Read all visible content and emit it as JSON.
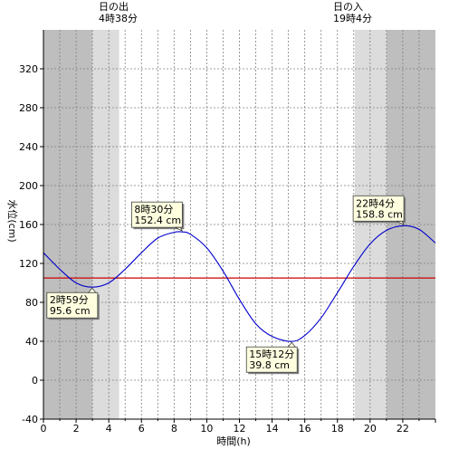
{
  "sun": {
    "sunrise_label": "日の出",
    "sunrise_time": "4時38分",
    "sunset_label": "日の入",
    "sunset_time": "19時4分"
  },
  "chart_data": {
    "type": "line",
    "title": "",
    "xlabel": "時間(h)",
    "ylabel": "水位(cm)",
    "xlim": [
      0,
      24
    ],
    "ylim": [
      -40,
      360
    ],
    "xticks": [
      0,
      2,
      4,
      6,
      8,
      10,
      12,
      14,
      16,
      18,
      20,
      22
    ],
    "yticks": [
      -40,
      0,
      40,
      80,
      120,
      160,
      200,
      240,
      280,
      320
    ],
    "reference_level": 105,
    "series": [
      {
        "x": [
          0,
          1,
          2,
          2.983,
          4,
          5,
          6,
          7,
          8,
          8.5,
          9,
          10,
          11,
          12,
          13,
          14,
          15.2,
          16,
          17,
          18,
          19,
          20,
          21,
          22.067,
          23,
          24
        ],
        "y": [
          131,
          114,
          100,
          95.6,
          100,
          114,
          131,
          146,
          152,
          152.4,
          150,
          136,
          112,
          83,
          58,
          45,
          39.8,
          46,
          64,
          90,
          117,
          140,
          154,
          158.8,
          155,
          141
        ]
      }
    ],
    "annotations": [
      {
        "time": "2時59分",
        "level": "95.6 cm",
        "x": 2.983,
        "y": 95.6,
        "side": "below"
      },
      {
        "time": "8時30分",
        "level": "152.4 cm",
        "x": 8.5,
        "y": 152.4,
        "side": "above"
      },
      {
        "time": "15時12分",
        "level": "39.8 cm",
        "x": 15.2,
        "y": 39.8,
        "side": "below"
      },
      {
        "time": "22時4分",
        "level": "158.8 cm",
        "x": 22.067,
        "y": 158.8,
        "side": "above"
      }
    ],
    "shading": {
      "night": [
        [
          0,
          3
        ],
        [
          21,
          24
        ]
      ],
      "twilight": [
        [
          3,
          4.633
        ],
        [
          19.067,
          21
        ]
      ]
    },
    "colors": {
      "line": "#0000cc",
      "reference": "#cc0000",
      "night": "#bebebe",
      "twilight": "#dcdcdc",
      "day": "#ffffff",
      "label_box": "#ffffe0"
    }
  }
}
